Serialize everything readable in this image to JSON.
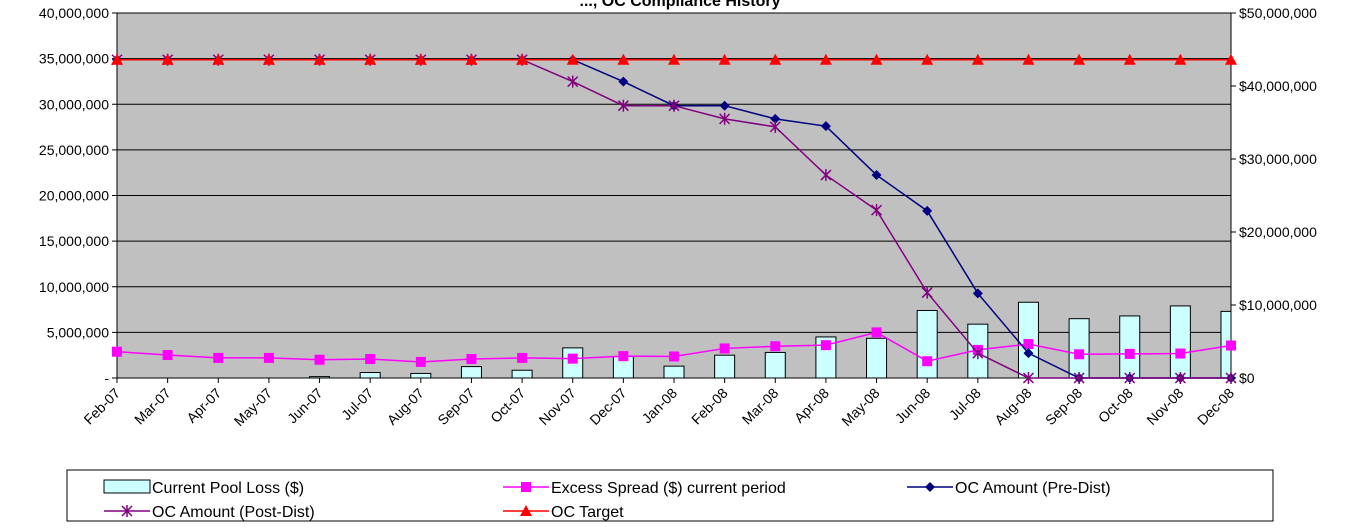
{
  "chart_data": {
    "type": "bar",
    "title": "..., OC Compliance History",
    "categories": [
      "Feb-07",
      "Mar-07",
      "Apr-07",
      "May-07",
      "Jun-07",
      "Jul-07",
      "Aug-07",
      "Sep-07",
      "Oct-07",
      "Nov-07",
      "Dec-07",
      "Jan-08",
      "Feb-08",
      "Mar-08",
      "Apr-08",
      "May-08",
      "Jun-08",
      "Jul-08",
      "Aug-08",
      "Sep-08",
      "Oct-08",
      "Nov-08",
      "Dec-08"
    ],
    "left_axis": {
      "ylim": [
        0,
        40000000
      ],
      "ticks": [
        0,
        5000000,
        10000000,
        15000000,
        20000000,
        25000000,
        30000000,
        35000000,
        40000000
      ],
      "tick_labels": [
        "-",
        "5,000,000",
        "10,000,000",
        "15,000,000",
        "20,000,000",
        "25,000,000",
        "30,000,000",
        "35,000,000",
        "40,000,000"
      ]
    },
    "right_axis": {
      "ylim": [
        0,
        50000000
      ],
      "ticks": [
        0,
        10000000,
        20000000,
        30000000,
        40000000,
        50000000
      ],
      "tick_labels": [
        "$0",
        "$10,000,000",
        "$20,000,000",
        "$30,000,000",
        "$40,000,000",
        "$50,000,000"
      ]
    },
    "grid": true,
    "plot_background": "#c0c0c0",
    "legend_position": "bottom",
    "series": [
      {
        "name": "Current Pool Loss ($)",
        "kind": "bar",
        "axis": "left",
        "color": "#ccffff",
        "values": [
          0,
          0,
          0,
          0,
          150000,
          600000,
          500000,
          1250000,
          850000,
          3300000,
          2350000,
          1300000,
          2500000,
          2800000,
          4500000,
          4350000,
          7400000,
          5900000,
          8300000,
          6500000,
          6800000,
          7900000,
          7300000
        ]
      },
      {
        "name": "Excess Spread ($) current period",
        "kind": "line",
        "axis": "right",
        "color": "#ff00ff",
        "marker": "square",
        "values": [
          3600000,
          3150000,
          2750000,
          2750000,
          2500000,
          2600000,
          2200000,
          2600000,
          2750000,
          2650000,
          3000000,
          2950000,
          4050000,
          4350000,
          4500000,
          6250000,
          2300000,
          3850000,
          4650000,
          3250000,
          3300000,
          3350000,
          4450000
        ]
      },
      {
        "name": "OC Amount (Pre-Dist)",
        "kind": "line",
        "axis": "right",
        "color": "#000080",
        "marker": "diamond",
        "values": [
          43600000,
          43600000,
          43600000,
          43600000,
          43600000,
          43600000,
          43600000,
          43600000,
          43600000,
          43600000,
          40600000,
          37300000,
          37300000,
          35500000,
          34500000,
          27800000,
          22900000,
          11600000,
          3400000,
          0,
          0,
          0,
          0
        ]
      },
      {
        "name": "OC Amount (Post-Dist)",
        "kind": "line",
        "axis": "right",
        "color": "#800080",
        "marker": "star",
        "values": [
          43600000,
          43600000,
          43600000,
          43600000,
          43600000,
          43600000,
          43600000,
          43600000,
          43600000,
          40600000,
          37300000,
          37300000,
          35500000,
          34400000,
          27800000,
          23000000,
          11700000,
          3400000,
          0,
          0,
          0,
          0,
          0
        ]
      },
      {
        "name": "OC Target",
        "kind": "line",
        "axis": "right",
        "color": "#ff0000",
        "marker": "triangle",
        "values": [
          43600000,
          43600000,
          43600000,
          43600000,
          43600000,
          43600000,
          43600000,
          43600000,
          43600000,
          43600000,
          43600000,
          43600000,
          43600000,
          43600000,
          43600000,
          43600000,
          43600000,
          43600000,
          43600000,
          43600000,
          43600000,
          43600000,
          43600000
        ]
      }
    ]
  }
}
